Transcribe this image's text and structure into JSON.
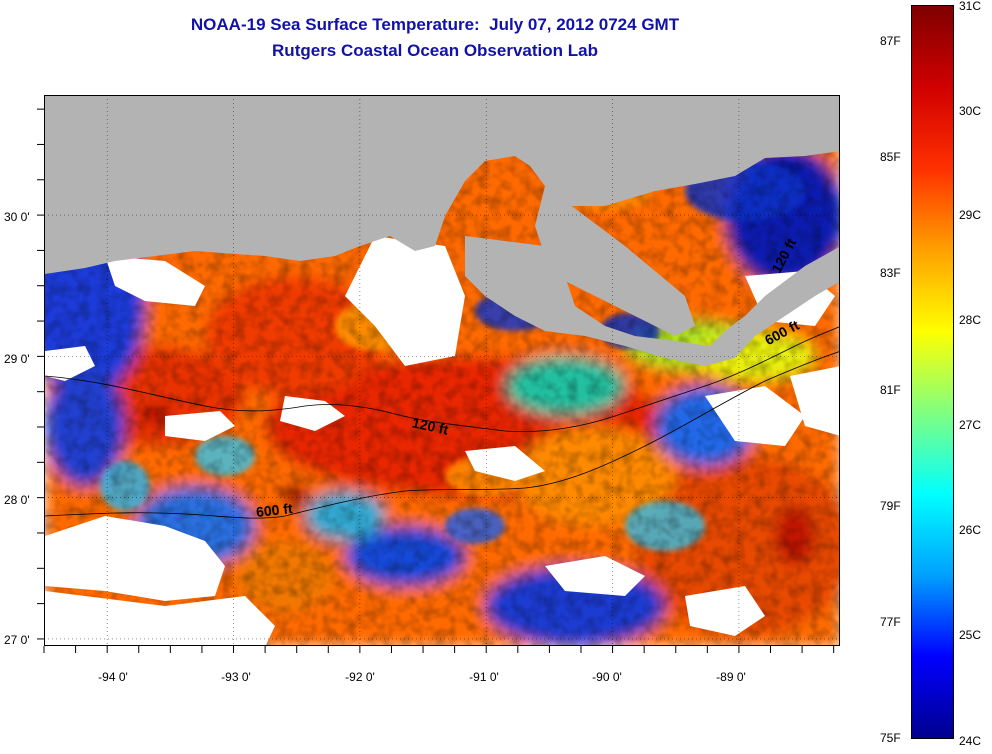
{
  "header": {
    "title": "NOAA-19 Sea Surface Temperature:  July 07, 2012 0724 GMT",
    "subtitle": "Rutgers Coastal Ocean Observation Lab"
  },
  "map": {
    "longitude_labels": [
      {
        "value": -94,
        "label": "-94 0'"
      },
      {
        "value": -93,
        "label": "-93 0'"
      },
      {
        "value": -92,
        "label": "-92 0'"
      },
      {
        "value": -91,
        "label": "-91 0'"
      },
      {
        "value": -90,
        "label": "-90 0'"
      },
      {
        "value": -89,
        "label": "-89 0'"
      }
    ],
    "latitude_labels": [
      {
        "value": 30,
        "label": "30 0'"
      },
      {
        "value": 29,
        "label": "29 0'"
      },
      {
        "value": 28,
        "label": "28 0'"
      },
      {
        "value": 27,
        "label": "27 0'"
      }
    ],
    "lon_range": [
      -94.5,
      -88.2
    ],
    "lat_range": [
      26.95,
      30.85
    ],
    "depth_contours": [
      "120 ft",
      "600 ft",
      "120 ft",
      "600 ft"
    ],
    "land_color": "#b3b3b3",
    "no_data_color": "#ffffff"
  },
  "colorbar": {
    "min_c": 24,
    "max_c": 31,
    "celsius_labels": [
      "31C",
      "30C",
      "29C",
      "28C",
      "27C",
      "26C",
      "25C",
      "24C"
    ],
    "fahrenheit_labels": [
      "87F",
      "85F",
      "83F",
      "81F",
      "79F",
      "77F",
      "75F"
    ],
    "colors": [
      "#00008f",
      "#0000ff",
      "#00a0ff",
      "#00ffff",
      "#80ff80",
      "#ffff00",
      "#ffa000",
      "#ff3000",
      "#d00000",
      "#800000"
    ]
  }
}
